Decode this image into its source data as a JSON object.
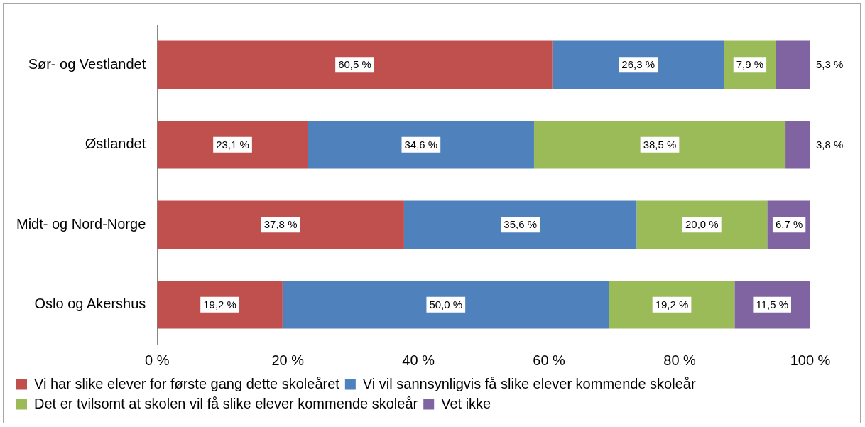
{
  "chart_data": {
    "type": "bar",
    "orientation": "horizontal",
    "stacked": true,
    "categories": [
      "Sør- og Vestlandet",
      "Østlandet",
      "Midt- og Nord-Norge",
      "Oslo og Akershus"
    ],
    "series": [
      {
        "name": "Vi har slike elever for første gang dette skoleåret",
        "color": "#c0504d",
        "values": [
          60.5,
          23.1,
          37.8,
          19.2
        ],
        "value_labels": [
          "60,5 %",
          "23,1 %",
          "37,8 %",
          "19,2 %"
        ]
      },
      {
        "name": "Vi vil sannsynligvis få slike elever kommende skoleår",
        "color": "#4f81bd",
        "values": [
          26.3,
          34.6,
          35.6,
          50.0
        ],
        "value_labels": [
          "26,3 %",
          "34,6 %",
          "35,6 %",
          "50,0 %"
        ]
      },
      {
        "name": "Det er tvilsomt at skolen vil få slike elever kommende skoleår",
        "color": "#9bbb59",
        "values": [
          7.9,
          38.5,
          20.0,
          19.2
        ],
        "value_labels": [
          "7,9 %",
          "38,5 %",
          "20,0 %",
          "19,2 %"
        ]
      },
      {
        "name": "Vet ikke",
        "color": "#8064a2",
        "values": [
          5.3,
          3.8,
          6.7,
          11.5
        ],
        "value_labels": [
          "5,3 %",
          "3,8 %",
          "6,7 %",
          "11,5 %"
        ]
      }
    ],
    "xlim": [
      0,
      100
    ],
    "xticks": [
      {
        "value": 0,
        "label": "0 %"
      },
      {
        "value": 20,
        "label": "20 %"
      },
      {
        "value": 40,
        "label": "40 %"
      },
      {
        "value": 60,
        "label": "60 %"
      },
      {
        "value": 80,
        "label": "80 %"
      },
      {
        "value": 100,
        "label": "100 %"
      }
    ],
    "grid": false,
    "legend": "bottom"
  }
}
